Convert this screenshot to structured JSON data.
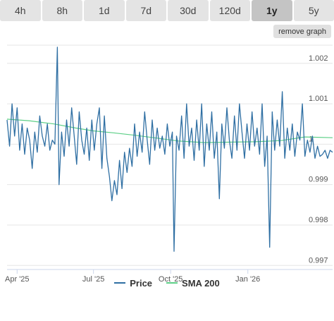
{
  "tabs": [
    {
      "label": "4h",
      "active": false
    },
    {
      "label": "8h",
      "active": false
    },
    {
      "label": "1d",
      "active": false
    },
    {
      "label": "7d",
      "active": false
    },
    {
      "label": "30d",
      "active": false
    },
    {
      "label": "120d",
      "active": false
    },
    {
      "label": "1y",
      "active": true
    },
    {
      "label": "5y",
      "active": false
    }
  ],
  "remove_graph_label": "remove graph",
  "colors": {
    "price": "#2f6fa3",
    "sma": "#5ccf86",
    "grid": "#e6e6e6"
  },
  "chart_data": {
    "type": "line",
    "title": "",
    "xlabel": "",
    "ylabel": "",
    "ylim": [
      0.9969,
      1.00245
    ],
    "x_range": [
      "2025-03-20",
      "2026-04-12"
    ],
    "x_ticks": [
      {
        "label": "Apr '25",
        "date": "2025-04-01"
      },
      {
        "label": "Jul '25",
        "date": "2025-07-01"
      },
      {
        "label": "Oct '25",
        "date": "2025-10-01"
      },
      {
        "label": "Jan '26",
        "date": "2026-01-01"
      }
    ],
    "y_ticks": [
      {
        "label": "0.997",
        "value": 0.997
      },
      {
        "label": "0.998",
        "value": 0.998
      },
      {
        "label": "0.999",
        "value": 0.999
      },
      {
        "label": "1",
        "value": 1.0
      },
      {
        "label": "1.001",
        "value": 1.001
      },
      {
        "label": "1.002",
        "value": 1.002
      }
    ],
    "grid": true,
    "legend_position": "bottom",
    "series": [
      {
        "name": "Price",
        "points": [
          [
            "2025-03-20",
            1.0006
          ],
          [
            "2025-03-23",
            0.99995
          ],
          [
            "2025-03-26",
            1.001
          ],
          [
            "2025-03-29",
            1.0002
          ],
          [
            "2025-04-01",
            1.0009
          ],
          [
            "2025-04-04",
            0.99985
          ],
          [
            "2025-04-07",
            1.0005
          ],
          [
            "2025-04-10",
            0.99975
          ],
          [
            "2025-04-13",
            1.0004
          ],
          [
            "2025-04-16",
            1.0001
          ],
          [
            "2025-04-19",
            0.9994
          ],
          [
            "2025-04-22",
            1.0003
          ],
          [
            "2025-04-25",
            0.9998
          ],
          [
            "2025-04-28",
            1.0007
          ],
          [
            "2025-05-01",
            1.0002
          ],
          [
            "2025-05-04",
            0.99995
          ],
          [
            "2025-05-07",
            1.0005
          ],
          [
            "2025-05-10",
            0.99985
          ],
          [
            "2025-05-13",
            1.0001
          ],
          [
            "2025-05-16",
            1.0
          ],
          [
            "2025-05-19",
            1.0024
          ],
          [
            "2025-05-21",
            0.999
          ],
          [
            "2025-05-24",
            1.0003
          ],
          [
            "2025-05-27",
            0.9997
          ],
          [
            "2025-05-30",
            1.0006
          ],
          [
            "2025-06-02",
            0.99995
          ],
          [
            "2025-06-05",
            1.0009
          ],
          [
            "2025-06-08",
            1.0002
          ],
          [
            "2025-06-11",
            0.9995
          ],
          [
            "2025-06-14",
            1.0008
          ],
          [
            "2025-06-17",
            1.0001
          ],
          [
            "2025-06-20",
            0.99975
          ],
          [
            "2025-06-23",
            1.0004
          ],
          [
            "2025-06-26",
            0.9996
          ],
          [
            "2025-06-29",
            1.0006
          ],
          [
            "2025-07-02",
            0.99985
          ],
          [
            "2025-07-05",
            1.0005
          ],
          [
            "2025-07-08",
            1.0009
          ],
          [
            "2025-07-11",
            0.9994
          ],
          [
            "2025-07-14",
            1.0007
          ],
          [
            "2025-07-17",
            0.99965
          ],
          [
            "2025-07-20",
            0.9992
          ],
          [
            "2025-07-23",
            0.9986
          ],
          [
            "2025-07-26",
            0.9991
          ],
          [
            "2025-07-29",
            0.99875
          ],
          [
            "2025-08-01",
            0.9996
          ],
          [
            "2025-08-04",
            0.9989
          ],
          [
            "2025-08-07",
            0.9998
          ],
          [
            "2025-08-10",
            0.9993
          ],
          [
            "2025-08-13",
            0.9999
          ],
          [
            "2025-08-16",
            0.99945
          ],
          [
            "2025-08-19",
            1.0005
          ],
          [
            "2025-08-22",
            0.9997
          ],
          [
            "2025-08-25",
            1.0003
          ],
          [
            "2025-08-28",
            0.9998
          ],
          [
            "2025-08-31",
            1.0008
          ],
          [
            "2025-09-03",
            1.0001
          ],
          [
            "2025-09-06",
            0.9995
          ],
          [
            "2025-09-09",
            1.0006
          ],
          [
            "2025-09-12",
            0.99985
          ],
          [
            "2025-09-15",
            1.0004
          ],
          [
            "2025-09-18",
            0.9999
          ],
          [
            "2025-09-21",
            1.0002
          ],
          [
            "2025-09-24",
            0.99975
          ],
          [
            "2025-09-27",
            1.0005
          ],
          [
            "2025-09-30",
            0.99995
          ],
          [
            "2025-10-03",
            1.0003
          ],
          [
            "2025-10-05",
            0.99735
          ],
          [
            "2025-10-08",
            1.0002
          ],
          [
            "2025-10-11",
            0.99985
          ],
          [
            "2025-10-14",
            1.0007
          ],
          [
            "2025-10-17",
            0.99965
          ],
          [
            "2025-10-20",
            1.001
          ],
          [
            "2025-10-23",
            0.99995
          ],
          [
            "2025-10-26",
            1.0004
          ],
          [
            "2025-10-29",
            0.9996
          ],
          [
            "2025-11-01",
            1.0006
          ],
          [
            "2025-11-04",
            0.99985
          ],
          [
            "2025-11-07",
            1.001
          ],
          [
            "2025-11-10",
            0.99945
          ],
          [
            "2025-11-13",
            1.0005
          ],
          [
            "2025-11-16",
            0.99985
          ],
          [
            "2025-11-19",
            1.0008
          ],
          [
            "2025-11-22",
            0.99965
          ],
          [
            "2025-11-25",
            1.0003
          ],
          [
            "2025-11-28",
            0.99865
          ],
          [
            "2025-12-01",
            1.0005
          ],
          [
            "2025-12-04",
            0.9999
          ],
          [
            "2025-12-07",
            1.0009
          ],
          [
            "2025-12-10",
            1.0001
          ],
          [
            "2025-12-13",
            0.99965
          ],
          [
            "2025-12-16",
            1.0007
          ],
          [
            "2025-12-19",
            0.99985
          ],
          [
            "2025-12-22",
            1.001
          ],
          [
            "2025-12-25",
            1.0003
          ],
          [
            "2025-12-28",
            0.99965
          ],
          [
            "2025-12-31",
            1.0005
          ],
          [
            "2026-01-03",
            0.99985
          ],
          [
            "2026-01-06",
            1.0008
          ],
          [
            "2026-01-09",
            0.99995
          ],
          [
            "2026-01-12",
            1.0004
          ],
          [
            "2026-01-15",
            0.99975
          ],
          [
            "2026-01-18",
            1.001
          ],
          [
            "2026-01-21",
            0.99945
          ],
          [
            "2026-01-24",
            1.0002
          ],
          [
            "2026-01-27",
            0.99745
          ],
          [
            "2026-01-30",
            1.0008
          ],
          [
            "2026-02-02",
            0.99985
          ],
          [
            "2026-02-05",
            1.0006
          ],
          [
            "2026-02-08",
            0.99995
          ],
          [
            "2026-02-11",
            1.0013
          ],
          [
            "2026-02-14",
            0.99965
          ],
          [
            "2026-02-17",
            1.0004
          ],
          [
            "2026-02-20",
            0.99985
          ],
          [
            "2026-02-23",
            1.0005
          ],
          [
            "2026-02-26",
            0.9997
          ],
          [
            "2026-03-01",
            1.0003
          ],
          [
            "2026-03-04",
            1.0001
          ],
          [
            "2026-03-07",
            1.001
          ],
          [
            "2026-03-10",
            0.9997
          ],
          [
            "2026-03-13",
            1.0001
          ],
          [
            "2026-03-16",
            0.9998
          ],
          [
            "2026-03-19",
            1.0002
          ],
          [
            "2026-03-22",
            0.99965
          ],
          [
            "2026-03-25",
            0.99995
          ],
          [
            "2026-03-28",
            0.9997
          ],
          [
            "2026-03-31",
            0.99975
          ],
          [
            "2026-04-03",
            0.99985
          ],
          [
            "2026-04-06",
            0.99965
          ],
          [
            "2026-04-09",
            0.99985
          ],
          [
            "2026-04-12",
            0.9998
          ]
        ]
      },
      {
        "name": "SMA 200",
        "points": [
          [
            "2025-03-20",
            1.00062
          ],
          [
            "2025-04-15",
            1.00058
          ],
          [
            "2025-05-15",
            1.0005
          ],
          [
            "2025-06-10",
            1.0004
          ],
          [
            "2025-07-01",
            1.00033
          ],
          [
            "2025-07-25",
            1.00028
          ],
          [
            "2025-08-20",
            1.00022
          ],
          [
            "2025-09-15",
            1.00015
          ],
          [
            "2025-10-10",
            1.00008
          ],
          [
            "2025-11-10",
            1.00004
          ],
          [
            "2025-12-10",
            1.00005
          ],
          [
            "2026-01-10",
            1.00006
          ],
          [
            "2026-02-10",
            1.00009
          ],
          [
            "2026-03-10",
            1.00018
          ],
          [
            "2026-04-12",
            1.00016
          ]
        ]
      }
    ]
  }
}
